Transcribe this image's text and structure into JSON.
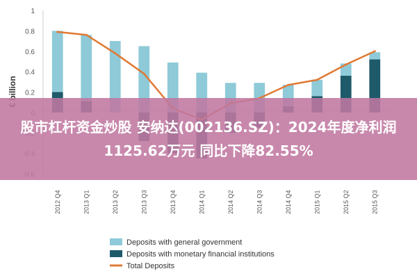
{
  "headline": "股市杠杆资金炒股 安纳达(002136.SZ)：2024年度净利润1125.62万元 同比下降82.55%",
  "colors": {
    "general_government": "#8ECAD8",
    "monetary_institutions": "#1F5A6B",
    "total": "#E07A35",
    "band": "#C078A0"
  },
  "chart_data": {
    "type": "bar",
    "categories": [
      "2012 Q4",
      "2013 Q1",
      "2013 Q2",
      "2013 Q3",
      "2013 Q4",
      "2014 Q1",
      "2014 Q2",
      "2014 Q3",
      "2014 Q4",
      "2015 Q1",
      "2015 Q2",
      "2015 Q3"
    ],
    "series": [
      {
        "name": "Deposits with general government",
        "type": "bar",
        "values": [
          0.6,
          0.65,
          0.7,
          0.65,
          0.49,
          0.39,
          0.29,
          0.29,
          0.21,
          0.16,
          0.12,
          0.07
        ]
      },
      {
        "name": "Deposits with monetary financial institutions",
        "type": "bar",
        "values": [
          0.2,
          0.11,
          0.0,
          -0.28,
          -0.4,
          -0.45,
          -0.2,
          -0.15,
          0.06,
          0.16,
          0.36,
          0.52
        ]
      },
      {
        "name": "Total Deposits",
        "type": "line",
        "values": [
          0.79,
          0.76,
          0.58,
          0.38,
          0.04,
          -0.07,
          0.09,
          0.14,
          0.27,
          0.32,
          0.47,
          0.6
        ]
      }
    ],
    "ylabel": "€ billion",
    "ylim": [
      -0.6,
      1.0
    ],
    "yticks": [
      "1",
      "0.8",
      "0.6",
      "0.4",
      "0.2",
      "0",
      "-0.2",
      "-0.4",
      "-0.6"
    ],
    "legend": [
      "Deposits with general government",
      "Deposits with monetary financial institutions",
      "Total Deposits"
    ],
    "legend_position": "bottom",
    "grid": false
  }
}
